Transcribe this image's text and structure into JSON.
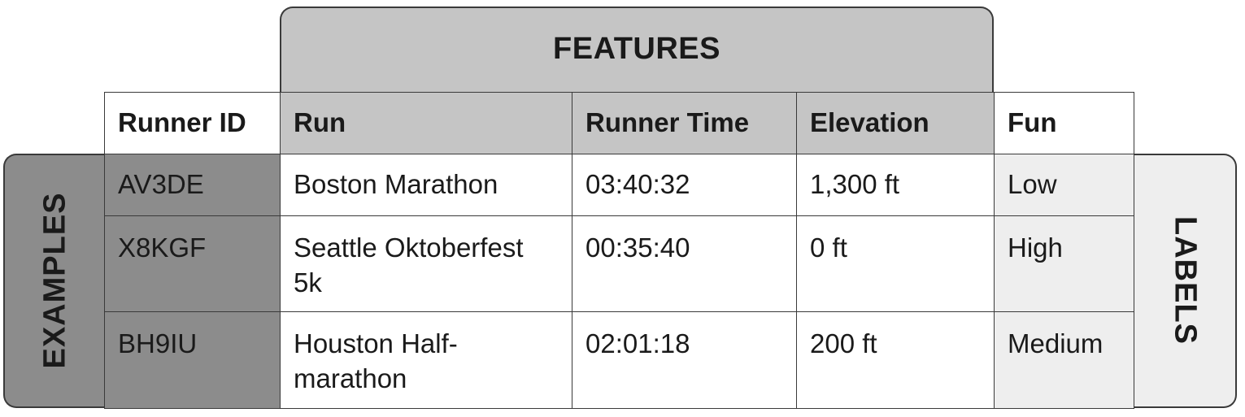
{
  "features_label": "FEATURES",
  "examples_label": "EXAMPLES",
  "labels_label": "LABELS",
  "columns": [
    "Runner ID",
    "Run",
    "Runner Time",
    "Elevation",
    "Fun"
  ],
  "rows": [
    [
      "AV3DE",
      "Boston Marathon",
      "03:40:32",
      "1,300 ft",
      "Low"
    ],
    [
      "X8KGF",
      "Seattle Oktoberfest 5k",
      "00:35:40",
      "0 ft",
      "High"
    ],
    [
      "BH9IU",
      "Houston Half-marathon",
      "02:01:18",
      "200 ft",
      "Medium"
    ]
  ],
  "colors": {
    "features": "#c5c5c5",
    "examples": "#8c8c8c",
    "labels": "#eeeeee",
    "border": "#3a3a3a"
  }
}
